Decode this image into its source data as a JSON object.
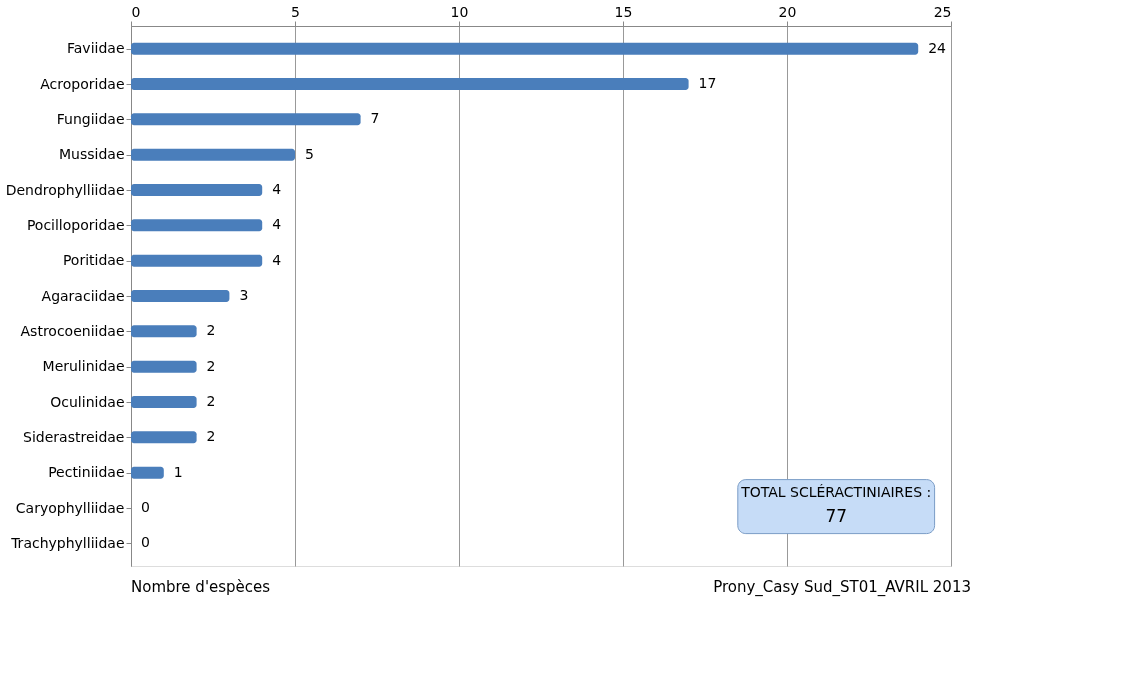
{
  "chart_data": {
    "type": "bar",
    "orientation": "horizontal",
    "xlabel": "Nombre d'espèces",
    "categories": [
      "Faviidae",
      "Acroporidae",
      "Fungiidae",
      "Mussidae",
      "Dendrophylliidae",
      "Pocilloporidae",
      "Poritidae",
      "Agaraciidae",
      "Astrocoeniidae",
      "Merulinidae",
      "Oculinidae",
      "Siderastreidae",
      "Pectiniidae",
      "Caryophylliidae",
      "Trachyphylliidae"
    ],
    "values": [
      24,
      17,
      7,
      5,
      4,
      4,
      4,
      3,
      2,
      2,
      2,
      2,
      1,
      0,
      0
    ],
    "color": "#4a7ebb",
    "xlim": [
      0,
      25
    ],
    "xticks": [
      0,
      5,
      10,
      15,
      20,
      25
    ],
    "grid": "x",
    "data_labels": true,
    "annotations": [
      "TOTAL SCLÉRACTINIAIRES :",
      "77",
      "Prony_Casy Sud_ST01_AVRIL 2013"
    ]
  }
}
